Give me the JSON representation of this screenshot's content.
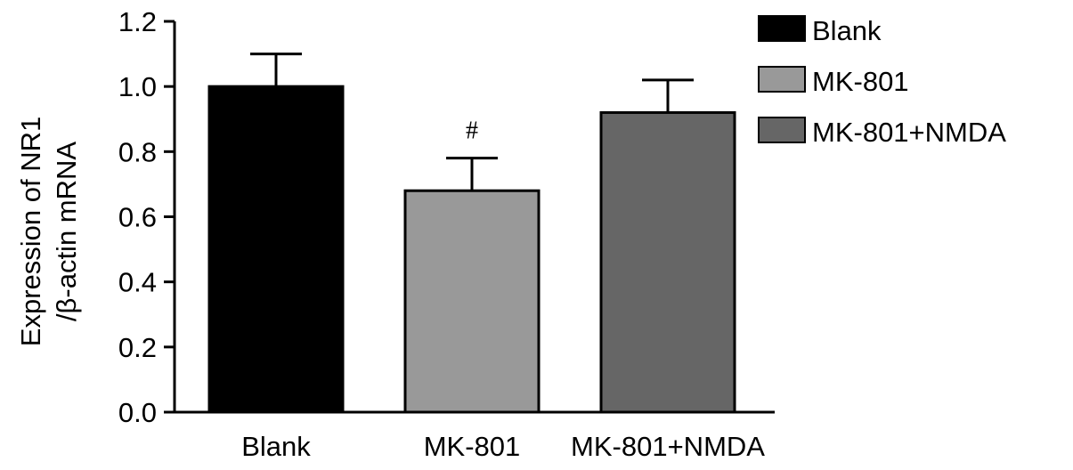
{
  "chart_data": {
    "type": "bar",
    "title": "",
    "ylabel_line1": "Expression of NR1",
    "ylabel_line2": "/β-actin mRNA",
    "xlabel": "",
    "ylim": [
      0,
      1.2
    ],
    "yticks": [
      "0.0",
      "0.2",
      "0.4",
      "0.6",
      "0.8",
      "1.0",
      "1.2"
    ],
    "categories": [
      "Blank",
      "MK-801",
      "MK-801+NMDA"
    ],
    "values": [
      1.0,
      0.68,
      0.92
    ],
    "errors": [
      0.1,
      0.1,
      0.1
    ],
    "colors": [
      "#000000",
      "#999999",
      "#666666"
    ],
    "annotations": [
      "",
      "#",
      ""
    ],
    "legend": {
      "placement": "top-right",
      "entries": [
        "Blank",
        "MK-801",
        "MK-801+NMDA"
      ]
    },
    "grid": false
  }
}
